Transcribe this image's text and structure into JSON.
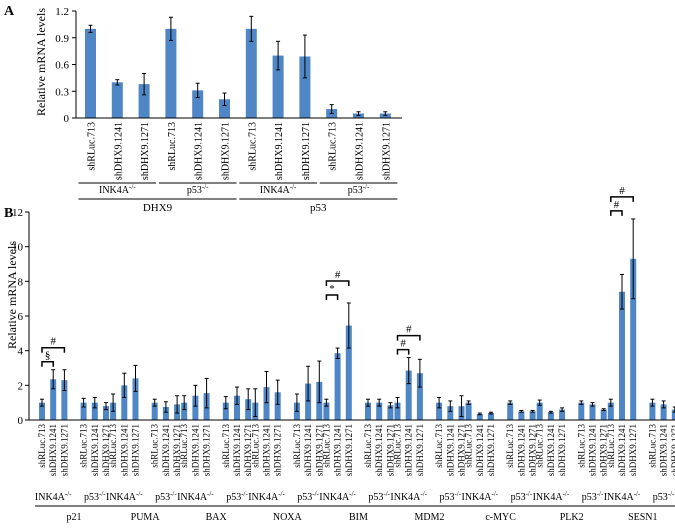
{
  "chart_data": [
    {
      "panel_label": "A",
      "type": "bar",
      "ylabel": "Relative mRNA levels",
      "ylim": [
        0,
        1.2
      ],
      "yticks": [
        "0",
        "0.3",
        "0.6",
        "0.9",
        "1.2"
      ],
      "categories": [
        "shRLuc.713",
        "shDHX9.1241",
        "shDHX9.1271",
        "shRLuc.713",
        "shDHX9.1241",
        "shDHX9.1271",
        "shRLuc.713",
        "shDHX9.1241",
        "shDHX9.1271",
        "shRLuc.713",
        "shDHX9.1241",
        "shDHX9.1271"
      ],
      "values": [
        1.0,
        0.4,
        0.38,
        1.0,
        0.31,
        0.21,
        1.0,
        0.7,
        0.69,
        0.1,
        0.05,
        0.05
      ],
      "errors": [
        0.04,
        0.03,
        0.12,
        0.13,
        0.08,
        0.07,
        0.14,
        0.16,
        0.24,
        0.05,
        0.02,
        0.02
      ],
      "cell_groups": [
        "INK4A-/-",
        "p53-/-",
        "INK4A-/-",
        "p53-/-"
      ],
      "gene_groups": [
        "DHX9",
        "p53"
      ]
    },
    {
      "panel_label": "B",
      "type": "bar",
      "ylabel": "Relative mRNA levels",
      "ylim": [
        0,
        12
      ],
      "yticks": [
        "0",
        "2",
        "4",
        "6",
        "8",
        "10",
        "12"
      ],
      "sample_labels": [
        "shRLuc.713",
        "shDHX9.1241",
        "shDHX9.1271"
      ],
      "cell_lines": [
        "INK4A-/-",
        "p53-/-"
      ],
      "genes": [
        {
          "name": "p21",
          "values": [
            1.0,
            2.35,
            2.3,
            1.0,
            1.0,
            0.8
          ],
          "errors": [
            0.2,
            0.55,
            0.6,
            0.25,
            0.3,
            0.2
          ]
        },
        {
          "name": "PUMA",
          "values": [
            1.0,
            2.0,
            2.4,
            1.0,
            0.75,
            0.9
          ],
          "errors": [
            0.5,
            0.7,
            0.75,
            0.2,
            0.3,
            0.5
          ]
        },
        {
          "name": "BAX",
          "values": [
            1.0,
            1.4,
            1.55,
            1.0,
            1.4,
            1.2
          ],
          "errors": [
            0.4,
            0.6,
            0.85,
            0.35,
            0.5,
            0.6
          ]
        },
        {
          "name": "NOXA",
          "values": [
            1.0,
            1.9,
            1.6,
            1.0,
            2.1,
            2.2
          ],
          "errors": [
            0.8,
            0.9,
            0.7,
            0.5,
            1.0,
            1.2
          ]
        },
        {
          "name": "BIM",
          "values": [
            1.0,
            3.85,
            5.45,
            1.0,
            1.0,
            0.85
          ],
          "errors": [
            0.2,
            0.3,
            1.3,
            0.2,
            0.2,
            0.15
          ]
        },
        {
          "name": "MDM2",
          "values": [
            1.0,
            2.85,
            2.7,
            1.0,
            0.8,
            0.8
          ],
          "errors": [
            0.3,
            0.75,
            0.8,
            0.3,
            0.3,
            0.6
          ]
        },
        {
          "name": "c-MYC",
          "values": [
            1.0,
            0.35,
            0.4,
            1.0,
            0.5,
            0.5
          ],
          "errors": [
            0.1,
            0.05,
            0.05,
            0.1,
            0.05,
            0.05
          ]
        },
        {
          "name": "PLK2",
          "values": [
            1.0,
            0.45,
            0.6,
            1.0,
            0.9,
            0.6
          ],
          "errors": [
            0.15,
            0.05,
            0.1,
            0.1,
            0.1,
            0.05
          ]
        },
        {
          "name": "SESN1",
          "values": [
            1.0,
            7.4,
            9.3,
            1.0,
            0.9,
            0.6
          ],
          "errors": [
            0.2,
            1.0,
            2.3,
            0.2,
            0.2,
            0.15
          ]
        }
      ],
      "annotations": [
        {
          "gene": "p21",
          "symbol": "§",
          "pair": [
            0,
            1
          ]
        },
        {
          "gene": "p21",
          "symbol": "#",
          "pair": [
            0,
            2
          ]
        },
        {
          "gene": "BIM",
          "symbol": "*",
          "pair": [
            0,
            1
          ]
        },
        {
          "gene": "BIM",
          "symbol": "#",
          "pair": [
            0,
            2
          ]
        },
        {
          "gene": "MDM2",
          "symbol": "#",
          "pair": [
            0,
            1
          ]
        },
        {
          "gene": "MDM2",
          "symbol": "#",
          "pair": [
            0,
            2
          ]
        },
        {
          "gene": "SESN1",
          "symbol": "#",
          "pair": [
            0,
            1
          ]
        },
        {
          "gene": "SESN1",
          "symbol": "#",
          "pair": [
            0,
            2
          ]
        }
      ]
    }
  ]
}
